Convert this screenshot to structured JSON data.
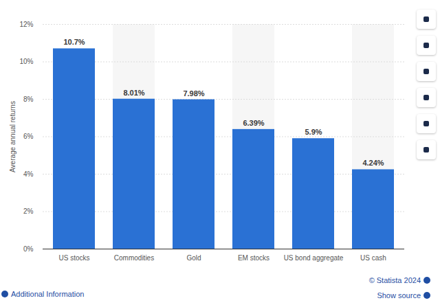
{
  "chart_data": {
    "type": "bar",
    "categories": [
      "US stocks",
      "Commodities",
      "Gold",
      "EM stocks",
      "US bond aggregate",
      "US cash"
    ],
    "values": [
      10.7,
      8.01,
      7.98,
      6.39,
      5.9,
      4.24
    ],
    "value_labels": [
      "10.7%",
      "8.01%",
      "7.98%",
      "6.39%",
      "5.9%",
      "4.24%"
    ],
    "data_labels": true,
    "color": "#2a71d4",
    "y_label": "Average annual returns",
    "ylim": [
      0,
      12
    ],
    "yticks": [
      {
        "value": 0,
        "label": "0%"
      },
      {
        "value": 2,
        "label": "2%"
      },
      {
        "value": 4,
        "label": "4%"
      },
      {
        "value": 6,
        "label": "6%"
      },
      {
        "value": 8,
        "label": "8%"
      },
      {
        "value": 10,
        "label": "10%"
      },
      {
        "value": 12,
        "label": "12%"
      }
    ],
    "grid": true,
    "credit": "© Statista 2024",
    "footer_left": "Additional Information",
    "footer_right": "Show source"
  }
}
